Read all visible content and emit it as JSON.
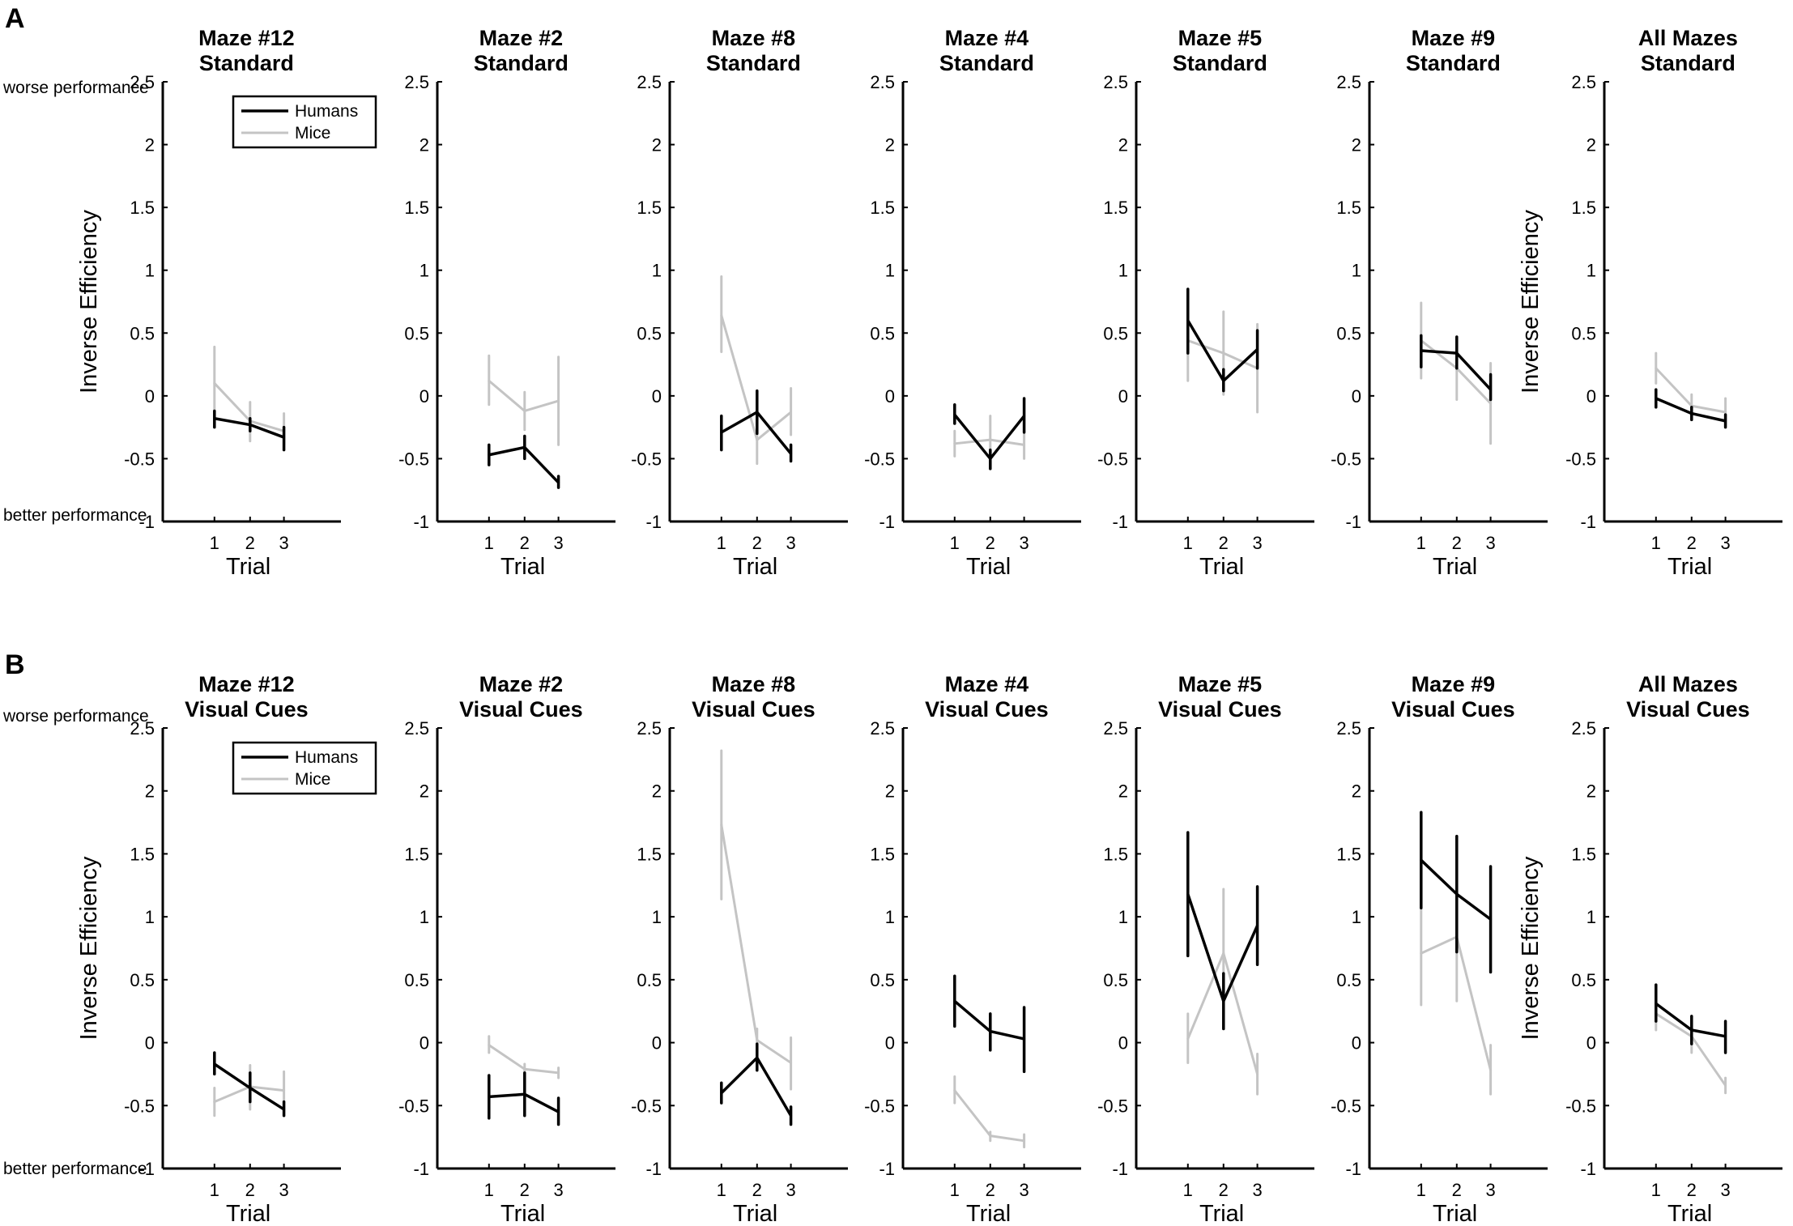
{
  "figure": {
    "panel_labels": [
      "A",
      "B"
    ],
    "y_side_labels": {
      "worse": "worse performance",
      "better": "better performance"
    },
    "legend": {
      "humans": "Humans",
      "mice": "Mice"
    },
    "colors": {
      "humans": "#000000",
      "mice": "#c4c4c4",
      "axis": "#000000"
    }
  },
  "chart_data": [
    {
      "type": "line",
      "title_line1": "Maze #12",
      "title_line2": "Standard",
      "xlabel": "Trial",
      "ylabel": "Inverse Efficiency",
      "x": [
        1,
        2,
        3
      ],
      "ylim": [
        -1,
        2.5
      ],
      "yticks": [
        -1,
        -0.5,
        0,
        0.5,
        1,
        1.5,
        2,
        2.5
      ],
      "series": [
        {
          "name": "Humans",
          "values": [
            -0.18,
            -0.23,
            -0.33
          ],
          "err_low": [
            -0.25,
            -0.28,
            -0.43
          ],
          "err_high": [
            -0.12,
            -0.18,
            -0.25
          ]
        },
        {
          "name": "Mice",
          "values": [
            0.1,
            -0.2,
            -0.28
          ],
          "err_low": [
            -0.18,
            -0.36,
            -0.39
          ],
          "err_high": [
            0.39,
            -0.05,
            -0.14
          ]
        }
      ]
    },
    {
      "type": "line",
      "title_line1": "Maze #2",
      "title_line2": "Standard",
      "xlabel": "Trial",
      "ylabel": "Inverse Efficiency",
      "x": [
        1,
        2,
        3
      ],
      "ylim": [
        -1,
        2.5
      ],
      "yticks": [
        -1,
        -0.5,
        0,
        0.5,
        1,
        1.5,
        2,
        2.5
      ],
      "series": [
        {
          "name": "Humans",
          "values": [
            -0.47,
            -0.41,
            -0.69
          ],
          "err_low": [
            -0.55,
            -0.5,
            -0.73
          ],
          "err_high": [
            -0.39,
            -0.32,
            -0.64
          ]
        },
        {
          "name": "Mice",
          "values": [
            0.12,
            -0.12,
            -0.04
          ],
          "err_low": [
            -0.07,
            -0.27,
            -0.39
          ],
          "err_high": [
            0.32,
            0.03,
            0.31
          ]
        }
      ]
    },
    {
      "type": "line",
      "title_line1": "Maze #8",
      "title_line2": "Standard",
      "xlabel": "Trial",
      "ylabel": "Inverse Efficiency",
      "x": [
        1,
        2,
        3
      ],
      "ylim": [
        -1,
        2.5
      ],
      "yticks": [
        -1,
        -0.5,
        0,
        0.5,
        1,
        1.5,
        2,
        2.5
      ],
      "series": [
        {
          "name": "Humans",
          "values": [
            -0.29,
            -0.13,
            -0.46
          ],
          "err_low": [
            -0.43,
            -0.3,
            -0.52
          ],
          "err_high": [
            -0.16,
            0.04,
            -0.39
          ]
        },
        {
          "name": "Mice",
          "values": [
            0.64,
            -0.35,
            -0.13
          ],
          "err_low": [
            0.35,
            -0.54,
            -0.31
          ],
          "err_high": [
            0.95,
            -0.17,
            0.06
          ]
        }
      ]
    },
    {
      "type": "line",
      "title_line1": "Maze #4",
      "title_line2": "Standard",
      "xlabel": "Trial",
      "ylabel": "Inverse Efficiency",
      "x": [
        1,
        2,
        3
      ],
      "ylim": [
        -1,
        2.5
      ],
      "yticks": [
        -1,
        -0.5,
        0,
        0.5,
        1,
        1.5,
        2,
        2.5
      ],
      "series": [
        {
          "name": "Humans",
          "values": [
            -0.15,
            -0.5,
            -0.16
          ],
          "err_low": [
            -0.22,
            -0.58,
            -0.29
          ],
          "err_high": [
            -0.07,
            -0.43,
            -0.02
          ]
        },
        {
          "name": "Mice",
          "values": [
            -0.38,
            -0.35,
            -0.39
          ],
          "err_low": [
            -0.48,
            -0.53,
            -0.5
          ],
          "err_high": [
            -0.28,
            -0.16,
            -0.3
          ]
        }
      ]
    },
    {
      "type": "line",
      "title_line1": "Maze #5",
      "title_line2": "Standard",
      "xlabel": "Trial",
      "ylabel": "Inverse Efficiency",
      "x": [
        1,
        2,
        3
      ],
      "ylim": [
        -1,
        2.5
      ],
      "yticks": [
        -1,
        -0.5,
        0,
        0.5,
        1,
        1.5,
        2,
        2.5
      ],
      "series": [
        {
          "name": "Humans",
          "values": [
            0.6,
            0.12,
            0.37
          ],
          "err_low": [
            0.34,
            0.04,
            0.22
          ],
          "err_high": [
            0.85,
            0.21,
            0.52
          ]
        },
        {
          "name": "Mice",
          "values": [
            0.44,
            0.34,
            0.22
          ],
          "err_low": [
            0.12,
            0.01,
            -0.13
          ],
          "err_high": [
            0.77,
            0.67,
            0.57
          ]
        }
      ]
    },
    {
      "type": "line",
      "title_line1": "Maze #9",
      "title_line2": "Standard",
      "xlabel": "Trial",
      "ylabel": "Inverse Efficiency",
      "x": [
        1,
        2,
        3
      ],
      "ylim": [
        -1,
        2.5
      ],
      "yticks": [
        -1,
        -0.5,
        0,
        0.5,
        1,
        1.5,
        2,
        2.5
      ],
      "series": [
        {
          "name": "Humans",
          "values": [
            0.36,
            0.34,
            0.05
          ],
          "err_low": [
            0.23,
            0.22,
            -0.03
          ],
          "err_high": [
            0.48,
            0.47,
            0.17
          ]
        },
        {
          "name": "Mice",
          "values": [
            0.44,
            0.22,
            -0.06
          ],
          "err_low": [
            0.14,
            -0.03,
            -0.38
          ],
          "err_high": [
            0.74,
            0.47,
            0.26
          ]
        }
      ]
    },
    {
      "type": "line",
      "title_line1": "All Mazes",
      "title_line2": "Standard",
      "xlabel": "Trial",
      "ylabel": "Inverse Efficiency",
      "x": [
        1,
        2,
        3
      ],
      "ylim": [
        -1,
        2.5
      ],
      "yticks": [
        -1,
        -0.5,
        0,
        0.5,
        1,
        1.5,
        2,
        2.5
      ],
      "series": [
        {
          "name": "Humans",
          "values": [
            -0.02,
            -0.14,
            -0.2
          ],
          "err_low": [
            -0.09,
            -0.19,
            -0.25
          ],
          "err_high": [
            0.05,
            -0.09,
            -0.15
          ]
        },
        {
          "name": "Mice",
          "values": [
            0.22,
            -0.08,
            -0.13
          ],
          "err_low": [
            0.1,
            -0.17,
            -0.23
          ],
          "err_high": [
            0.34,
            0.01,
            -0.02
          ]
        }
      ]
    },
    {
      "type": "line",
      "title_line1": "Maze #12",
      "title_line2": "Visual Cues",
      "xlabel": "Trial",
      "ylabel": "Inverse Efficiency",
      "x": [
        1,
        2,
        3
      ],
      "ylim": [
        -1,
        2.5
      ],
      "yticks": [
        -1,
        -0.5,
        0,
        0.5,
        1,
        1.5,
        2,
        2.5
      ],
      "series": [
        {
          "name": "Humans",
          "values": [
            -0.17,
            -0.36,
            -0.53
          ],
          "err_low": [
            -0.25,
            -0.47,
            -0.58
          ],
          "err_high": [
            -0.08,
            -0.24,
            -0.47
          ]
        },
        {
          "name": "Mice",
          "values": [
            -0.47,
            -0.35,
            -0.38
          ],
          "err_low": [
            -0.58,
            -0.53,
            -0.53
          ],
          "err_high": [
            -0.36,
            -0.18,
            -0.23
          ]
        }
      ]
    },
    {
      "type": "line",
      "title_line1": "Maze #2",
      "title_line2": "Visual Cues",
      "xlabel": "Trial",
      "ylabel": "Inverse Efficiency",
      "x": [
        1,
        2,
        3
      ],
      "ylim": [
        -1,
        2.5
      ],
      "yticks": [
        -1,
        -0.5,
        0,
        0.5,
        1,
        1.5,
        2,
        2.5
      ],
      "series": [
        {
          "name": "Humans",
          "values": [
            -0.43,
            -0.41,
            -0.55
          ],
          "err_low": [
            -0.6,
            -0.58,
            -0.65
          ],
          "err_high": [
            -0.26,
            -0.24,
            -0.44
          ]
        },
        {
          "name": "Mice",
          "values": [
            -0.02,
            -0.21,
            -0.24
          ],
          "err_low": [
            -0.08,
            -0.25,
            -0.28
          ],
          "err_high": [
            0.05,
            -0.17,
            -0.2
          ]
        }
      ]
    },
    {
      "type": "line",
      "title_line1": "Maze #8",
      "title_line2": "Visual Cues",
      "xlabel": "Trial",
      "ylabel": "Inverse Efficiency",
      "x": [
        1,
        2,
        3
      ],
      "ylim": [
        -1,
        2.5
      ],
      "yticks": [
        -1,
        -0.5,
        0,
        0.5,
        1,
        1.5,
        2,
        2.5
      ],
      "series": [
        {
          "name": "Humans",
          "values": [
            -0.4,
            -0.12,
            -0.58
          ],
          "err_low": [
            -0.48,
            -0.22,
            -0.65
          ],
          "err_high": [
            -0.32,
            -0.01,
            -0.51
          ]
        },
        {
          "name": "Mice",
          "values": [
            1.73,
            0.02,
            -0.16
          ],
          "err_low": [
            1.14,
            -0.07,
            -0.37
          ],
          "err_high": [
            2.32,
            0.11,
            0.04
          ]
        }
      ]
    },
    {
      "type": "line",
      "title_line1": "Maze #4",
      "title_line2": "Visual Cues",
      "xlabel": "Trial",
      "ylabel": "Inverse Efficiency",
      "x": [
        1,
        2,
        3
      ],
      "ylim": [
        -1,
        2.5
      ],
      "yticks": [
        -1,
        -0.5,
        0,
        0.5,
        1,
        1.5,
        2,
        2.5
      ],
      "series": [
        {
          "name": "Humans",
          "values": [
            0.33,
            0.09,
            0.03
          ],
          "err_low": [
            0.13,
            -0.06,
            -0.23
          ],
          "err_high": [
            0.53,
            0.23,
            0.28
          ]
        },
        {
          "name": "Mice",
          "values": [
            -0.38,
            -0.74,
            -0.78
          ],
          "err_low": [
            -0.48,
            -0.78,
            -0.83
          ],
          "err_high": [
            -0.27,
            -0.71,
            -0.73
          ]
        }
      ]
    },
    {
      "type": "line",
      "title_line1": "Maze #5",
      "title_line2": "Visual Cues",
      "xlabel": "Trial",
      "ylabel": "Inverse Efficiency",
      "x": [
        1,
        2,
        3
      ],
      "ylim": [
        -1,
        2.5
      ],
      "yticks": [
        -1,
        -0.5,
        0,
        0.5,
        1,
        1.5,
        2,
        2.5
      ],
      "series": [
        {
          "name": "Humans",
          "values": [
            1.18,
            0.33,
            0.93
          ],
          "err_low": [
            0.69,
            0.11,
            0.62
          ],
          "err_high": [
            1.67,
            0.55,
            1.24
          ]
        },
        {
          "name": "Mice",
          "values": [
            0.03,
            0.71,
            -0.25
          ],
          "err_low": [
            -0.16,
            0.2,
            -0.41
          ],
          "err_high": [
            0.23,
            1.22,
            -0.09
          ]
        }
      ]
    },
    {
      "type": "line",
      "title_line1": "Maze #9",
      "title_line2": "Visual Cues",
      "xlabel": "Trial",
      "ylabel": "Inverse Efficiency",
      "x": [
        1,
        2,
        3
      ],
      "ylim": [
        -1,
        2.5
      ],
      "yticks": [
        -1,
        -0.5,
        0,
        0.5,
        1,
        1.5,
        2,
        2.5
      ],
      "series": [
        {
          "name": "Humans",
          "values": [
            1.45,
            1.18,
            0.98
          ],
          "err_low": [
            1.07,
            0.72,
            0.56
          ],
          "err_high": [
            1.83,
            1.64,
            1.4
          ]
        },
        {
          "name": "Mice",
          "values": [
            0.71,
            0.84,
            -0.22
          ],
          "err_low": [
            0.3,
            0.33,
            -0.41
          ],
          "err_high": [
            1.12,
            1.35,
            -0.02
          ]
        }
      ]
    },
    {
      "type": "line",
      "title_line1": "All Mazes",
      "title_line2": "Visual Cues",
      "xlabel": "Trial",
      "ylabel": "Inverse Efficiency",
      "x": [
        1,
        2,
        3
      ],
      "ylim": [
        -1,
        2.5
      ],
      "yticks": [
        -1,
        -0.5,
        0,
        0.5,
        1,
        1.5,
        2,
        2.5
      ],
      "series": [
        {
          "name": "Humans",
          "values": [
            0.31,
            0.1,
            0.05
          ],
          "err_low": [
            0.17,
            -0.01,
            -0.08
          ],
          "err_high": [
            0.46,
            0.21,
            0.17
          ]
        },
        {
          "name": "Mice",
          "values": [
            0.23,
            0.05,
            -0.34
          ],
          "err_low": [
            0.1,
            -0.08,
            -0.4
          ],
          "err_high": [
            0.36,
            0.17,
            -0.28
          ]
        }
      ]
    }
  ]
}
